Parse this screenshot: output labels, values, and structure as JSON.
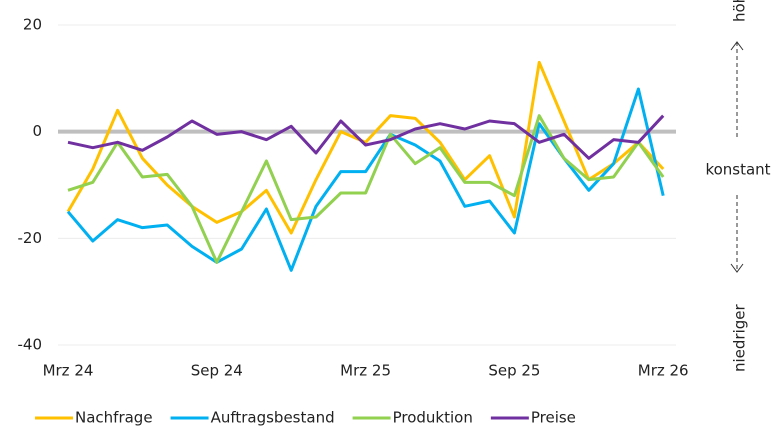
{
  "chart_data": {
    "type": "line",
    "categories": [
      "Mrz 24",
      null,
      null,
      null,
      null,
      null,
      "Sep 24",
      null,
      null,
      null,
      null,
      null,
      "Mrz 25",
      null,
      null,
      null,
      null,
      null,
      "Sep 25",
      null,
      null,
      null,
      null,
      null,
      "Mrz 26"
    ],
    "series": [
      {
        "name": "Nachfrage",
        "color": "#ffc000",
        "values": [
          -15,
          -7,
          4,
          -5,
          -10,
          -14,
          -17,
          -15,
          -11,
          -19,
          -9,
          0,
          -2,
          3,
          2.5,
          -2,
          -9,
          -4.5,
          -16,
          13,
          2,
          -9,
          -6,
          -2,
          -7
        ]
      },
      {
        "name": "Auftragsbestand",
        "color": "#00b0f0",
        "values": [
          -15,
          -20.5,
          -16.5,
          -18,
          -17.5,
          -21.5,
          -24.5,
          -22,
          -14.5,
          -26,
          -14,
          -7.5,
          -7.5,
          -0.5,
          -2.5,
          -5.5,
          -14,
          -13,
          -19,
          1.5,
          -5,
          -11,
          -6,
          8,
          -12
        ]
      },
      {
        "name": "Produktion",
        "color": "#92d050",
        "values": [
          -11,
          -9.5,
          -2,
          -8.5,
          -8,
          -14,
          -24.5,
          -15,
          -5.5,
          -16.5,
          -16,
          -11.5,
          -11.5,
          -0.5,
          -6,
          -3,
          -9.5,
          -9.5,
          -12,
          3,
          -5,
          -9,
          -8.5,
          -2,
          -8.5
        ]
      },
      {
        "name": "Preise",
        "color": "#7030a0",
        "values": [
          -2,
          -3,
          -2,
          -3.5,
          -1,
          2,
          -0.5,
          0,
          -1.5,
          1,
          -4,
          2,
          -2.5,
          -1.5,
          0.5,
          1.5,
          0.5,
          2,
          1.5,
          -2,
          -0.5,
          -5,
          -1.5,
          -2,
          3
        ]
      }
    ],
    "ylim": [
      -40,
      20
    ],
    "yticks": [
      -40,
      -20,
      0,
      20
    ],
    "grid": true,
    "annotations": [
      "höher",
      "konstant",
      "niedriger"
    ]
  }
}
